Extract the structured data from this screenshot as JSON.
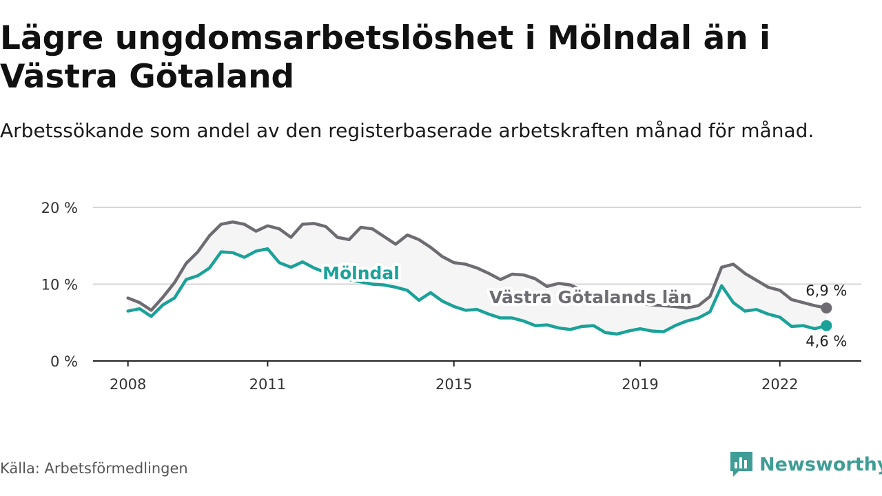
{
  "title": "Lägre ungdomsarbetslöshet i Mölndal än i Västra Götaland",
  "subtitle": "Arbetssökande som andel av den registerbaserade arbetskraften månad för månad.",
  "source": "Källa: Arbetsförmedlingen",
  "brand": "Newsworthy",
  "colors": {
    "molndal": "#1aa299",
    "vgl": "#6e6c72",
    "band": "#f5f5f5",
    "grid": "#d6d6d6",
    "axis": "#222222",
    "brand": "#3f9d95"
  },
  "chart_data": {
    "type": "line",
    "title": "Lägre ungdomsarbetslöshet i Mölndal än i Västra Götaland",
    "xlabel": "",
    "ylabel": "",
    "ylim": [
      0,
      20
    ],
    "xlim": [
      2007.25,
      2023.75
    ],
    "grid": true,
    "y_ticks": [
      {
        "value": 0,
        "label": "0 %"
      },
      {
        "value": 10,
        "label": "10 %"
      },
      {
        "value": 20,
        "label": "20 %"
      }
    ],
    "x_ticks": [
      {
        "value": 2008,
        "label": "2008"
      },
      {
        "value": 2011,
        "label": "2011"
      },
      {
        "value": 2015,
        "label": "2015"
      },
      {
        "value": 2019,
        "label": "2019"
      },
      {
        "value": 2022,
        "label": "2022"
      }
    ],
    "x": [
      2008.0,
      2008.25,
      2008.5,
      2008.75,
      2009.0,
      2009.25,
      2009.5,
      2009.75,
      2010.0,
      2010.25,
      2010.5,
      2010.75,
      2011.0,
      2011.25,
      2011.5,
      2011.75,
      2012.0,
      2012.25,
      2012.5,
      2012.75,
      2013.0,
      2013.25,
      2013.5,
      2013.75,
      2014.0,
      2014.25,
      2014.5,
      2014.75,
      2015.0,
      2015.25,
      2015.5,
      2015.75,
      2016.0,
      2016.25,
      2016.5,
      2016.75,
      2017.0,
      2017.25,
      2017.5,
      2017.75,
      2018.0,
      2018.25,
      2018.5,
      2018.75,
      2019.0,
      2019.25,
      2019.5,
      2019.75,
      2020.0,
      2020.25,
      2020.5,
      2020.75,
      2021.0,
      2021.25,
      2021.5,
      2021.75,
      2022.0,
      2022.25,
      2022.5,
      2022.75,
      2023.0
    ],
    "series": [
      {
        "name": "Västra Götalands län",
        "label": "Västra Götalands län",
        "last_label": "6,9 %",
        "values": [
          8.2,
          7.6,
          6.6,
          8.3,
          10.2,
          12.7,
          14.2,
          16.3,
          17.8,
          18.1,
          17.8,
          16.9,
          17.6,
          17.2,
          16.1,
          17.8,
          17.9,
          17.5,
          16.1,
          15.8,
          17.4,
          17.2,
          16.2,
          15.2,
          16.4,
          15.8,
          14.8,
          13.6,
          12.8,
          12.6,
          12.1,
          11.4,
          10.6,
          11.3,
          11.2,
          10.7,
          9.7,
          10.1,
          9.9,
          9.2,
          8.7,
          8.3,
          7.9,
          7.6,
          7.5,
          7.3,
          7.2,
          7.1,
          6.9,
          7.2,
          8.4,
          12.2,
          12.6,
          11.4,
          10.5,
          9.6,
          9.2,
          8.0,
          7.6,
          7.2,
          6.9
        ]
      },
      {
        "name": "Mölndal",
        "label": "Mölndal",
        "last_label": "4,6 %",
        "values": [
          6.5,
          6.8,
          5.8,
          7.3,
          8.2,
          10.6,
          11.1,
          12.1,
          14.2,
          14.1,
          13.5,
          14.3,
          14.6,
          12.8,
          12.2,
          12.9,
          12.1,
          11.5,
          11.1,
          10.6,
          10.3,
          10.0,
          9.9,
          9.6,
          9.2,
          7.9,
          8.9,
          7.8,
          7.1,
          6.6,
          6.7,
          6.1,
          5.6,
          5.6,
          5.2,
          4.6,
          4.7,
          4.3,
          4.1,
          4.5,
          4.6,
          3.7,
          3.5,
          3.9,
          4.2,
          3.9,
          3.8,
          4.6,
          5.2,
          5.6,
          6.4,
          9.8,
          7.6,
          6.5,
          6.7,
          6.1,
          5.7,
          4.5,
          4.6,
          4.2,
          4.6
        ]
      }
    ]
  }
}
